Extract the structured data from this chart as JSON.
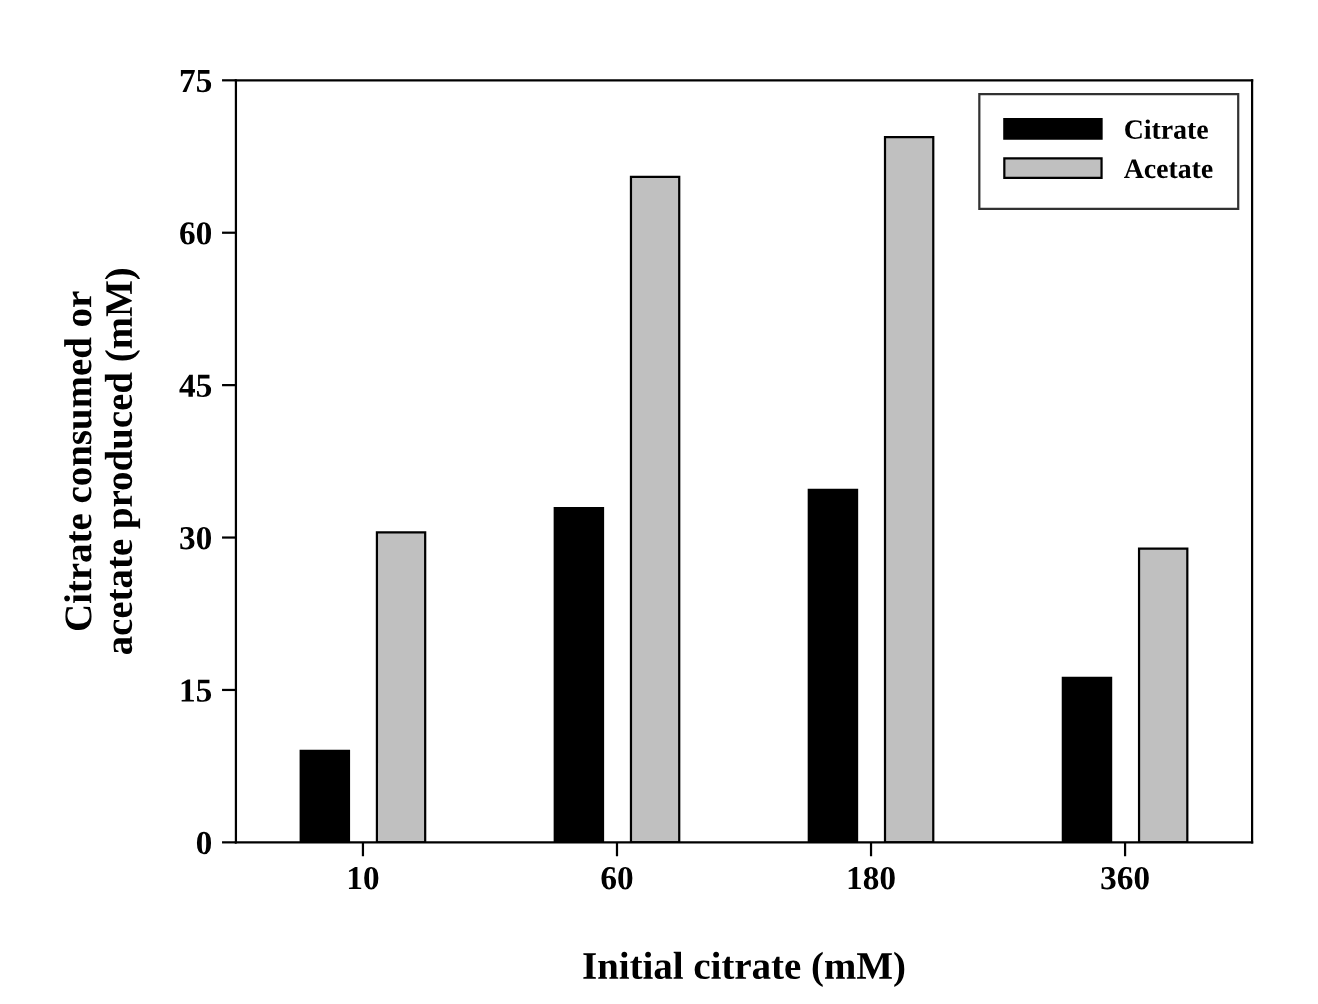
{
  "chart_data": {
    "type": "bar",
    "xlabel": "Initial citrate (mM)",
    "ylabel": "Citrate consumed or\nacetate produced (mM)",
    "categories": [
      "10",
      "60",
      "180",
      "360"
    ],
    "series": [
      {
        "name": "Citrate",
        "color": "#000000",
        "values": [
          9.0,
          32.9,
          34.7,
          16.2
        ]
      },
      {
        "name": "Acetate",
        "color": "#c0c0c0",
        "values": [
          30.5,
          65.5,
          69.4,
          28.9
        ]
      }
    ],
    "ylim": [
      0,
      75
    ],
    "yticks": [
      0,
      15,
      30,
      45,
      60,
      75
    ],
    "legend": "top right",
    "grid": false
  }
}
